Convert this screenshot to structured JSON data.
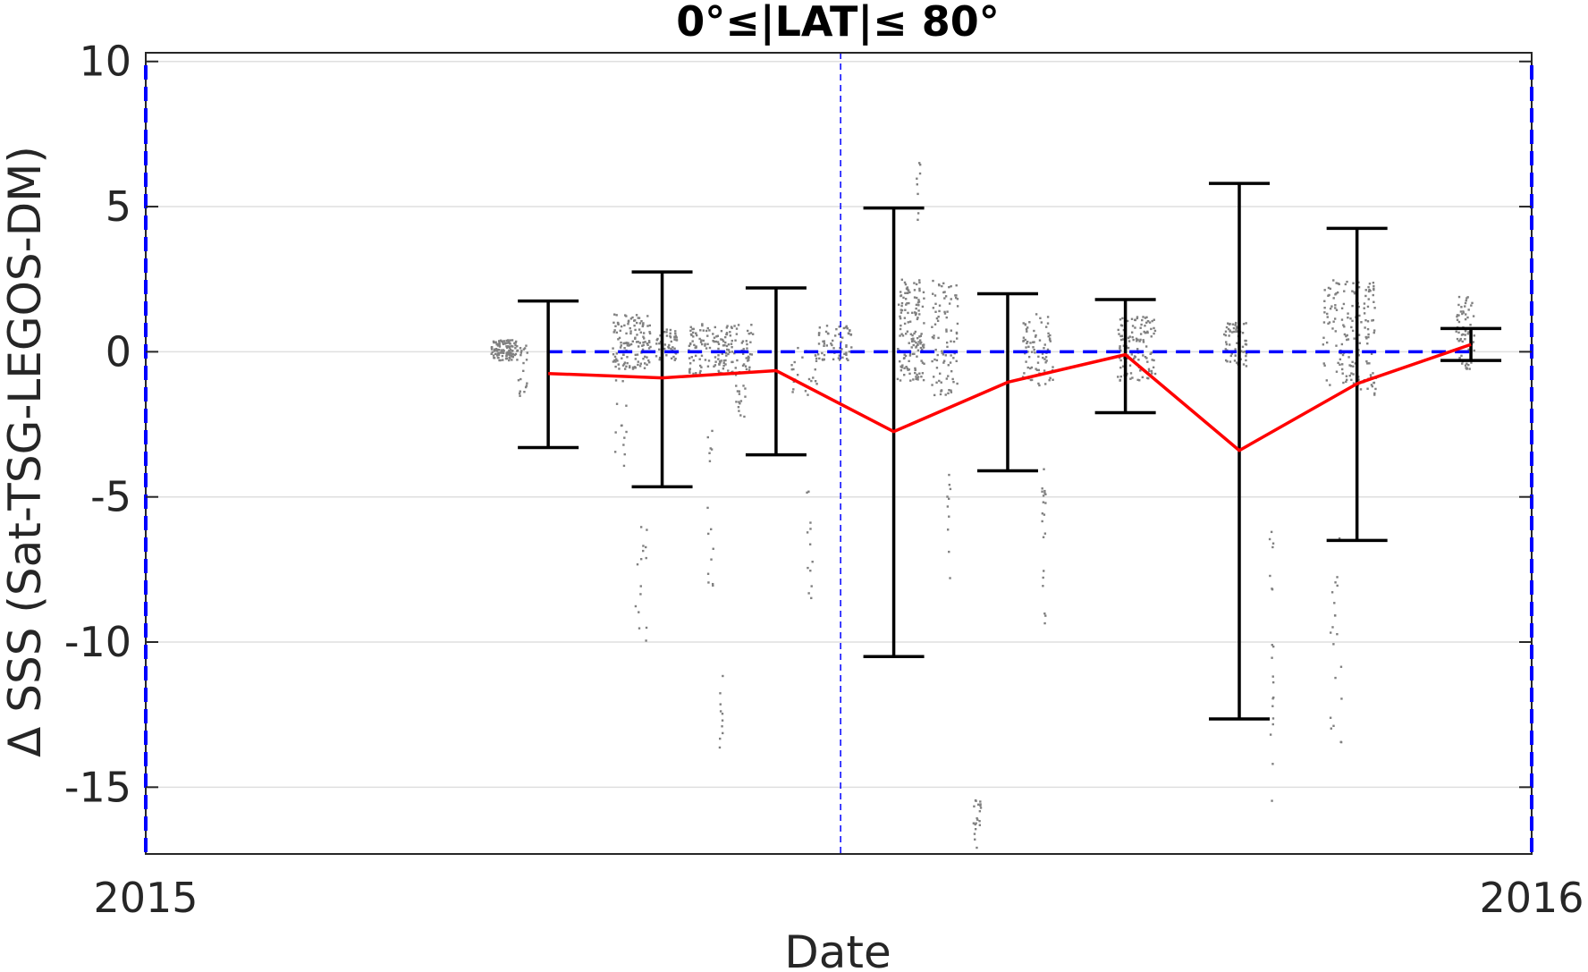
{
  "chart_data": {
    "type": "scatter",
    "title": "0°≤|LAT|≤ 80°",
    "xlabel": "Date",
    "ylabel": "Δ SSS (Sat-TSG-LEGOS-DM)",
    "xlim": [
      "2015-01-01",
      "2016-01-01"
    ],
    "ylim": [
      -17.3,
      10.3
    ],
    "x_ticks": [
      "2015-01-01",
      "2016-01-01"
    ],
    "x_tick_labels": [
      "2015",
      "2016"
    ],
    "y_ticks": [
      10,
      5,
      0,
      -5,
      -10,
      -15
    ],
    "y_tick_labels": [
      "10",
      "5",
      "0",
      "-5",
      "-10",
      "-15"
    ],
    "grid": "horizontal",
    "series": [
      {
        "kind": "errorbar",
        "color": "#000000",
        "points": [
          {
            "x": "2015-04-17",
            "mean": -0.75,
            "low": -3.3,
            "high": 1.75
          },
          {
            "x": "2015-05-17",
            "mean": -0.9,
            "low": -4.65,
            "high": 2.75
          },
          {
            "x": "2015-06-16",
            "mean": -0.65,
            "low": -3.55,
            "high": 2.2
          },
          {
            "x": "2015-07-17",
            "mean": -2.75,
            "low": -10.5,
            "high": 4.95
          },
          {
            "x": "2015-08-16",
            "mean": -1.05,
            "low": -4.1,
            "high": 2.0
          },
          {
            "x": "2015-09-16",
            "mean": -0.1,
            "low": -2.1,
            "high": 1.8
          },
          {
            "x": "2015-10-16",
            "mean": -3.4,
            "low": -12.65,
            "high": 5.8
          },
          {
            "x": "2015-11-16",
            "mean": -1.1,
            "low": -6.5,
            "high": 4.25
          },
          {
            "x": "2015-12-16",
            "mean": 0.25,
            "low": -0.3,
            "high": 0.8
          }
        ]
      },
      {
        "kind": "line",
        "color": "#ff0000",
        "x": [
          "2015-04-17",
          "2015-05-17",
          "2015-06-16",
          "2015-07-17",
          "2015-08-16",
          "2015-09-16",
          "2015-10-16",
          "2015-11-16",
          "2015-12-16"
        ],
        "y": [
          -0.75,
          -0.9,
          -0.65,
          -2.75,
          -1.05,
          -0.1,
          -3.4,
          -1.1,
          0.25
        ]
      },
      {
        "kind": "hline",
        "color": "#0000ff",
        "style": "dashed",
        "y": 0,
        "x_range": [
          "2015-04-17",
          "2015-12-16"
        ]
      },
      {
        "kind": "vline",
        "color": "#0000ff",
        "style": "dashed",
        "x": "2015-07-03"
      },
      {
        "kind": "scatter",
        "color": "#808080",
        "clusters": [
          {
            "x": [
              "2015-04-02",
              "2015-04-09"
            ],
            "y": [
              -0.3,
              0.4
            ],
            "n": 120
          },
          {
            "x": [
              "2015-04-09",
              "2015-04-12"
            ],
            "y": [
              -1.6,
              0.3
            ],
            "n": 20
          },
          {
            "x": [
              "2015-05-04",
              "2015-05-14"
            ],
            "y": [
              -0.6,
              1.3
            ],
            "n": 130
          },
          {
            "x": [
              "2015-05-04",
              "2015-05-08"
            ],
            "y": [
              -4.0,
              -0.5
            ],
            "n": 15
          },
          {
            "x": [
              "2015-05-10",
              "2015-05-13"
            ],
            "y": [
              -10.0,
              -6.0
            ],
            "n": 15
          },
          {
            "x": [
              "2015-05-15",
              "2015-05-21"
            ],
            "y": [
              -0.3,
              0.8
            ],
            "n": 50
          },
          {
            "x": [
              "2015-05-24",
              "2015-06-10"
            ],
            "y": [
              -0.8,
              1.0
            ],
            "n": 170
          },
          {
            "x": [
              "2015-05-29",
              "2015-05-31"
            ],
            "y": [
              -8.5,
              -2.5
            ],
            "n": 15
          },
          {
            "x": [
              "2015-06-01",
              "2015-06-02"
            ],
            "y": [
              -14.0,
              -11.0
            ],
            "n": 10
          },
          {
            "x": [
              "2015-06-05",
              "2015-06-08"
            ],
            "y": [
              -2.3,
              -1.0
            ],
            "n": 15
          },
          {
            "x": [
              "2015-06-20",
              "2015-06-27"
            ],
            "y": [
              -1.5,
              0.2
            ],
            "n": 25
          },
          {
            "x": [
              "2015-06-24",
              "2015-06-26"
            ],
            "y": [
              -8.5,
              -4.5
            ],
            "n": 12
          },
          {
            "x": [
              "2015-06-27",
              "2015-07-06"
            ],
            "y": [
              -0.3,
              0.9
            ],
            "n": 60
          },
          {
            "x": [
              "2015-07-18",
              "2015-07-25"
            ],
            "y": [
              -1.0,
              2.5
            ],
            "n": 150
          },
          {
            "x": [
              "2015-07-23",
              "2015-07-24"
            ],
            "y": [
              4.5,
              6.6
            ],
            "n": 8
          },
          {
            "x": [
              "2015-07-27",
              "2015-08-03"
            ],
            "y": [
              -1.5,
              2.5
            ],
            "n": 90
          },
          {
            "x": [
              "2015-07-31",
              "2015-08-01"
            ],
            "y": [
              -8.0,
              -4.0
            ],
            "n": 10
          },
          {
            "x": [
              "2015-08-07",
              "2015-08-09"
            ],
            "y": [
              -17.3,
              -15.2
            ],
            "n": 20
          },
          {
            "x": [
              "2015-08-20",
              "2015-08-28"
            ],
            "y": [
              -1.2,
              1.3
            ],
            "n": 80
          },
          {
            "x": [
              "2015-08-25",
              "2015-08-26"
            ],
            "y": [
              -9.5,
              -4.0
            ],
            "n": 20
          },
          {
            "x": [
              "2015-09-14",
              "2015-09-24"
            ],
            "y": [
              -1.0,
              1.2
            ],
            "n": 120
          },
          {
            "x": [
              "2015-10-12",
              "2015-10-18"
            ],
            "y": [
              -0.5,
              1.0
            ],
            "n": 60
          },
          {
            "x": [
              "2015-10-24",
              "2015-10-25"
            ],
            "y": [
              -15.5,
              -5.0
            ],
            "n": 20
          },
          {
            "x": [
              "2015-11-07",
              "2015-11-21"
            ],
            "y": [
              -1.5,
              2.5
            ],
            "n": 170
          },
          {
            "x": [
              "2015-11-09",
              "2015-11-12"
            ],
            "y": [
              -13.5,
              -4.5
            ],
            "n": 20
          },
          {
            "x": [
              "2015-12-12",
              "2015-12-17"
            ],
            "y": [
              -0.6,
              1.9
            ],
            "n": 60
          }
        ]
      }
    ]
  }
}
